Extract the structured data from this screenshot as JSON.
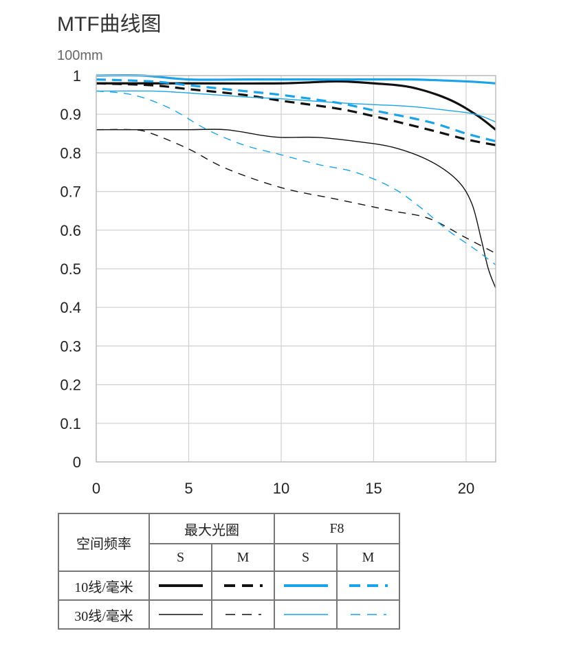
{
  "title": "MTF曲线图",
  "subtitle": "100mm",
  "colors": {
    "black": "#111111",
    "blue": "#1aa3e8",
    "grid": "#cfcfcf"
  },
  "chart_data": {
    "type": "line",
    "title": "MTF曲线图",
    "xlim": [
      0,
      21.6
    ],
    "ylim": [
      0,
      1
    ],
    "x_ticks": [
      "0",
      "5",
      "10",
      "15",
      "20"
    ],
    "x_tick_values": [
      0,
      5,
      10,
      15,
      20
    ],
    "y_ticks": [
      "0",
      "0.1",
      "0.2",
      "0.3",
      "0.4",
      "0.5",
      "0.6",
      "0.7",
      "0.8",
      "0.9",
      "1"
    ],
    "y_tick_values": [
      0,
      0.1,
      0.2,
      0.3,
      0.4,
      0.5,
      0.6,
      0.7,
      0.8,
      0.9,
      1
    ],
    "grid": true,
    "series": [
      {
        "id": "s10-max",
        "color": "#111111",
        "style": "solid",
        "weight": "thick",
        "x": [
          0,
          5,
          10,
          13,
          15,
          17,
          19,
          20.5,
          21.6
        ],
        "y": [
          0.98,
          0.98,
          0.98,
          0.985,
          0.98,
          0.97,
          0.94,
          0.9,
          0.86
        ]
      },
      {
        "id": "m10-max",
        "color": "#111111",
        "style": "dashed",
        "weight": "thick",
        "x": [
          0,
          3,
          5,
          8,
          10,
          13,
          15,
          18,
          20,
          21.6
        ],
        "y": [
          0.98,
          0.975,
          0.965,
          0.95,
          0.935,
          0.915,
          0.895,
          0.86,
          0.835,
          0.82
        ]
      },
      {
        "id": "s10-f8",
        "color": "#1aa3e8",
        "style": "solid",
        "weight": "thick",
        "x": [
          0,
          2.5,
          5,
          8,
          10,
          14,
          17,
          20,
          21.6
        ],
        "y": [
          1.0,
          1.0,
          0.99,
          0.99,
          0.99,
          0.99,
          0.99,
          0.985,
          0.98
        ]
      },
      {
        "id": "m10-f8",
        "color": "#1aa3e8",
        "style": "dashed",
        "weight": "thick",
        "x": [
          0,
          3,
          5,
          8,
          10,
          13,
          15,
          18,
          20,
          21.6
        ],
        "y": [
          0.99,
          0.985,
          0.975,
          0.96,
          0.95,
          0.93,
          0.91,
          0.88,
          0.85,
          0.83
        ]
      },
      {
        "id": "s30-max",
        "color": "#111111",
        "style": "solid",
        "weight": "thin",
        "x": [
          0,
          3,
          5,
          7,
          9,
          10,
          12,
          14,
          16,
          18,
          19.5,
          20.3,
          20.8,
          21.2,
          21.6
        ],
        "y": [
          0.86,
          0.86,
          0.86,
          0.86,
          0.845,
          0.84,
          0.84,
          0.83,
          0.815,
          0.78,
          0.73,
          0.67,
          0.58,
          0.5,
          0.45
        ]
      },
      {
        "id": "m30-max",
        "color": "#111111",
        "style": "dashed",
        "weight": "thin",
        "x": [
          0,
          2,
          3,
          5,
          7,
          10,
          13,
          16,
          18,
          20,
          21.6
        ],
        "y": [
          0.86,
          0.86,
          0.85,
          0.81,
          0.76,
          0.71,
          0.68,
          0.65,
          0.63,
          0.58,
          0.54
        ]
      },
      {
        "id": "s30-f8",
        "color": "#1aa3e8",
        "style": "solid",
        "weight": "thin",
        "x": [
          0,
          3,
          5,
          8,
          10,
          13,
          15,
          17,
          19,
          20.5,
          21.6
        ],
        "y": [
          0.96,
          0.96,
          0.955,
          0.945,
          0.94,
          0.93,
          0.925,
          0.92,
          0.91,
          0.9,
          0.88
        ]
      },
      {
        "id": "m30-f8",
        "color": "#1aa3e8",
        "style": "dashed",
        "weight": "thin",
        "x": [
          0,
          2,
          4,
          6,
          8,
          10,
          12,
          14,
          16,
          17.5,
          19,
          20.5,
          21.6
        ],
        "y": [
          0.96,
          0.95,
          0.915,
          0.86,
          0.82,
          0.795,
          0.77,
          0.75,
          0.71,
          0.66,
          0.6,
          0.55,
          0.51
        ]
      }
    ]
  },
  "legend": {
    "header_freq": "空间频率",
    "header_max": "最大光圈",
    "header_f8": "F8",
    "col_s": "S",
    "col_m": "M",
    "row_10": "10线/毫米",
    "row_30": "30线/毫米"
  }
}
